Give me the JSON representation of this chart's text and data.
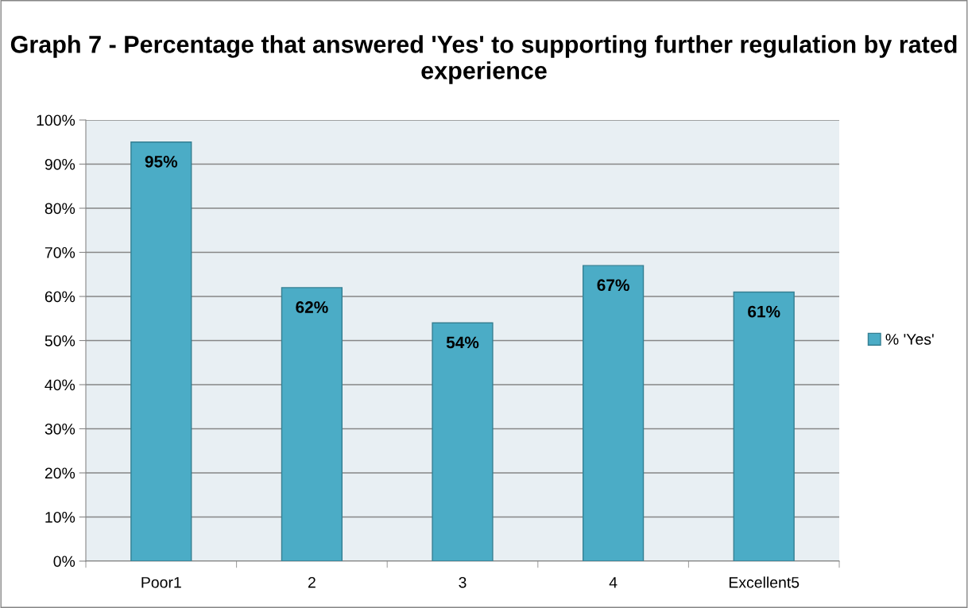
{
  "chart_data": {
    "type": "bar",
    "title": "Graph 7 - Percentage that answered 'Yes' to supporting further regulation by rated experience",
    "categories": [
      "Poor1",
      "2",
      "3",
      "4",
      "Excellent5"
    ],
    "series": [
      {
        "name": "% 'Yes'",
        "color": "#4bacc6",
        "values": [
          95,
          62,
          54,
          67,
          61
        ],
        "value_labels": [
          "95%",
          "62%",
          "54%",
          "67%",
          "61%"
        ]
      }
    ],
    "ylim": [
      0,
      100
    ],
    "yticks": [
      {
        "value": 0,
        "label": "0%"
      },
      {
        "value": 10,
        "label": "10%"
      },
      {
        "value": 20,
        "label": "20%"
      },
      {
        "value": 30,
        "label": "30%"
      },
      {
        "value": 40,
        "label": "40%"
      },
      {
        "value": 50,
        "label": "50%"
      },
      {
        "value": 60,
        "label": "60%"
      },
      {
        "value": 70,
        "label": "70%"
      },
      {
        "value": 80,
        "label": "80%"
      },
      {
        "value": 90,
        "label": "90%"
      },
      {
        "value": 100,
        "label": "100%"
      }
    ],
    "grid": "y",
    "legend": "right"
  }
}
